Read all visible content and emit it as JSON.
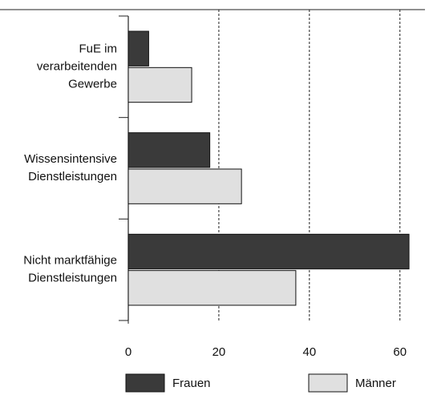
{
  "chart_data": {
    "type": "hbar",
    "categories": [
      [
        "FuE im",
        "verarbeitenden",
        "Gewerbe"
      ],
      [
        "Wissensintensive",
        "Dienstleistungen"
      ],
      [
        "Nicht marktfähige",
        "Dienstleistungen"
      ]
    ],
    "series": [
      {
        "name": "Frauen",
        "color": "#3a3a3a",
        "values": [
          4.5,
          18,
          62
        ]
      },
      {
        "name": "Männer",
        "color": "#e0e0e0",
        "values": [
          14,
          25,
          37
        ]
      }
    ],
    "xlim": [
      0,
      65
    ],
    "xticks": [
      0,
      20,
      40,
      60
    ],
    "grid": true
  }
}
